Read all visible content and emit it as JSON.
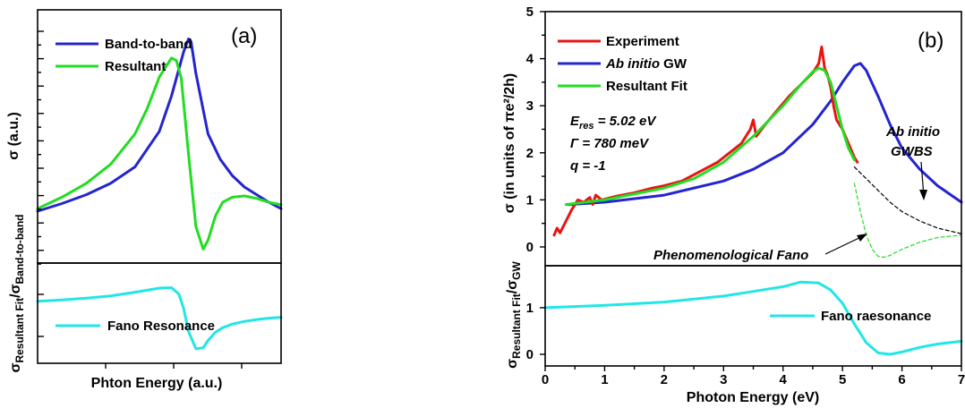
{
  "chart_data": [
    {
      "panel": "(a)",
      "type": "line",
      "xlabel": "Phton Energy (a.u.)",
      "ylabel_top": "σ (a.u.)",
      "ylabel_bottom": {
        "base": "σ",
        "sub1": "Resultant Fit",
        "slash": "/σ",
        "sub2": "Band-to-band"
      },
      "top": {
        "xlim": [
          0,
          10
        ],
        "ylim": [
          0,
          10
        ],
        "series": [
          {
            "name": "Band-to-band",
            "color": "#2424d0",
            "x": [
              0,
              1,
              2,
              3,
              4,
              5,
              5.5,
              6,
              6.2,
              6.3,
              6.5,
              7,
              7.5,
              8,
              8.5,
              9,
              9.5,
              10
            ],
            "y": [
              2.05,
              2.35,
              2.7,
              3.15,
              3.8,
              5.2,
              6.6,
              8.35,
              8.85,
              8.75,
              7.5,
              5.1,
              4.1,
              3.45,
              3.0,
              2.7,
              2.4,
              2.15
            ]
          },
          {
            "name": "Resultant",
            "color": "#22dd22",
            "x": [
              0,
              1,
              2,
              3,
              4,
              4.5,
              5,
              5.5,
              5.7,
              5.9,
              6.2,
              6.5,
              6.8,
              7,
              7.3,
              7.6,
              8,
              8.5,
              9,
              9.5,
              10
            ],
            "y": [
              2.15,
              2.6,
              3.15,
              3.9,
              5.1,
              6.1,
              7.35,
              8.1,
              8.0,
              7.3,
              4.3,
              1.45,
              0.55,
              0.9,
              1.85,
              2.4,
              2.6,
              2.65,
              2.55,
              2.4,
              2.3
            ]
          }
        ]
      },
      "bottom": {
        "xlim": [
          0,
          10
        ],
        "ylim": [
          -0.3,
          1.9
        ],
        "series": [
          {
            "name": "Fano Resonance",
            "color": "#22e6e6",
            "x": [
              0,
              1,
              2,
              3,
              4,
              5,
              5.5,
              5.8,
              6.0,
              6.2,
              6.5,
              6.8,
              7,
              7.3,
              7.6,
              8,
              8.5,
              9,
              9.5,
              10
            ],
            "y": [
              1.06,
              1.09,
              1.13,
              1.18,
              1.26,
              1.35,
              1.36,
              1.22,
              0.9,
              0.4,
              0.02,
              0.04,
              0.2,
              0.38,
              0.48,
              0.56,
              0.62,
              0.66,
              0.69,
              0.71
            ]
          }
        ]
      }
    },
    {
      "panel": "(b)",
      "type": "line",
      "xlabel": "Photon Energy (eV)",
      "ylabel_top": "σ (in units of πe²/2h)",
      "ylabel_bottom": {
        "base": "σ",
        "sub1": "Resultant Fit",
        "slash": "/σ",
        "sub2": "GW"
      },
      "top": {
        "xlim": [
          0,
          7
        ],
        "ylim": [
          -0.4,
          5
        ],
        "yticks": [
          0,
          1,
          2,
          3,
          4,
          5
        ],
        "series": [
          {
            "name": "Experiment",
            "color": "#e81414",
            "x": [
              0.15,
              0.2,
              0.25,
              0.35,
              0.45,
              0.55,
              0.65,
              0.75,
              0.8,
              0.85,
              0.95,
              1.2,
              1.5,
              1.8,
              2.0,
              2.3,
              2.6,
              2.9,
              3.1,
              3.3,
              3.45,
              3.5,
              3.55,
              3.7,
              3.9,
              4.1,
              4.3,
              4.5,
              4.6,
              4.65,
              4.7,
              4.75,
              4.8,
              4.85,
              4.9,
              5.0,
              5.1,
              5.15,
              5.2,
              5.25
            ],
            "y": [
              0.25,
              0.4,
              0.3,
              0.55,
              0.8,
              1.0,
              0.95,
              1.05,
              0.9,
              1.1,
              1.0,
              1.08,
              1.15,
              1.25,
              1.3,
              1.4,
              1.6,
              1.8,
              2.0,
              2.2,
              2.5,
              2.7,
              2.35,
              2.6,
              2.9,
              3.2,
              3.45,
              3.7,
              3.9,
              4.25,
              3.8,
              3.65,
              3.4,
              3.0,
              2.7,
              2.5,
              2.2,
              2.05,
              1.9,
              1.8
            ]
          },
          {
            "name": "Ab initio GW",
            "color": "#2424d0",
            "x": [
              0.4,
              1,
              2,
              3,
              3.5,
              4,
              4.5,
              4.8,
              5.0,
              5.2,
              5.3,
              5.4,
              5.6,
              5.8,
              6,
              6.3,
              6.6,
              7
            ],
            "y": [
              0.9,
              0.95,
              1.1,
              1.4,
              1.65,
              2.0,
              2.6,
              3.1,
              3.5,
              3.85,
              3.9,
              3.75,
              3.2,
              2.6,
              2.1,
              1.65,
              1.3,
              0.95
            ]
          },
          {
            "name": "Resultant Fit",
            "color": "#22dd22",
            "x": [
              0.35,
              1,
              2,
              2.5,
              3,
              3.5,
              4,
              4.3,
              4.5,
              4.6,
              4.7,
              4.8,
              4.9,
              5.0,
              5.1,
              5.2
            ],
            "y": [
              0.9,
              1.0,
              1.25,
              1.45,
              1.8,
              2.35,
              3.0,
              3.45,
              3.72,
              3.8,
              3.75,
              3.5,
              3.0,
              2.5,
              2.1,
              1.85
            ]
          }
        ],
        "dashed": [
          {
            "label": "Phenomenological Fano",
            "color": "#22dd22",
            "x": [
              5.2,
              5.3,
              5.4,
              5.5,
              5.6,
              5.7,
              5.8,
              6.0,
              6.3,
              6.6,
              7.0
            ],
            "y": [
              1.35,
              0.75,
              0.25,
              -0.05,
              -0.2,
              -0.22,
              -0.18,
              -0.05,
              0.1,
              0.2,
              0.25
            ]
          },
          {
            "label": "Ab initio GWBS",
            "color": "#000000",
            "x": [
              5.2,
              5.4,
              5.6,
              5.8,
              6.0,
              6.3,
              6.6,
              7.0
            ],
            "y": [
              1.7,
              1.45,
              1.2,
              0.95,
              0.75,
              0.55,
              0.4,
              0.28
            ]
          }
        ],
        "annotations": {
          "eres_main": "E",
          "eres_sub": "res",
          "eres_val": " = 5.02 eV",
          "gamma": "Γ = 780 meV",
          "q": "q = -1",
          "fano_label": "Phenomenological Fano",
          "gwbs_line1": "Ab initio",
          "gwbs_line2": "GWBS"
        }
      },
      "bottom": {
        "xlim": [
          0,
          7
        ],
        "ylim": [
          -0.25,
          1.9
        ],
        "yticks": [
          0,
          1
        ],
        "xticks": [
          0,
          1,
          2,
          3,
          4,
          5,
          6,
          7
        ],
        "series": [
          {
            "name": "Fano raesonance",
            "color": "#22e6e6",
            "x": [
              0,
              1,
              2,
              3,
              3.5,
              4,
              4.3,
              4.6,
              4.8,
              5.0,
              5.2,
              5.4,
              5.6,
              5.8,
              6,
              6.3,
              6.6,
              7
            ],
            "y": [
              1.0,
              1.05,
              1.12,
              1.25,
              1.35,
              1.45,
              1.55,
              1.53,
              1.38,
              1.1,
              0.65,
              0.25,
              0.03,
              0.0,
              0.05,
              0.15,
              0.22,
              0.28
            ]
          }
        ]
      }
    }
  ],
  "legend_b": {
    "exp": "Experiment",
    "gw_italic": "Ab initio",
    "gw_rest": " GW",
    "fit": "Resultant Fit"
  }
}
